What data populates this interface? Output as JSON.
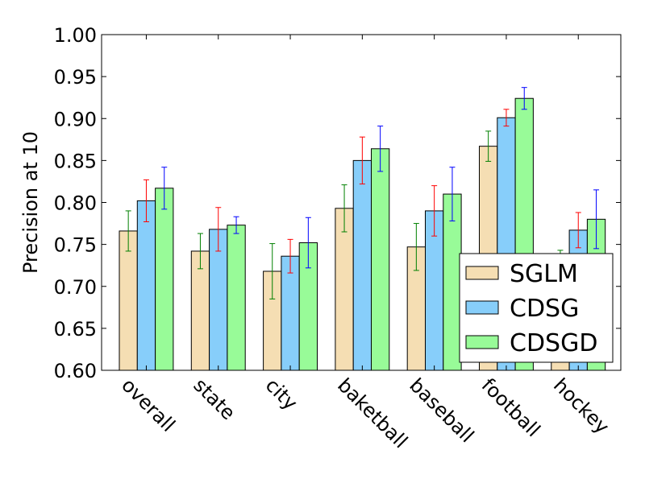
{
  "chart_data": {
    "type": "bar",
    "title": "",
    "xlabel": "",
    "ylabel": "Precision at 10",
    "ylim": [
      0.6,
      1.0
    ],
    "yticks": [
      "0.60",
      "0.65",
      "0.70",
      "0.75",
      "0.80",
      "0.85",
      "0.90",
      "0.95",
      "1.00"
    ],
    "categories": [
      "overall",
      "state",
      "city",
      "baketball",
      "baseball",
      "football",
      "hockey"
    ],
    "legend_position": "bottom-right",
    "grid": false,
    "series": [
      {
        "name": "SGLM",
        "color": "#f5deb3",
        "error_color": "#008000",
        "values": [
          0.766,
          0.742,
          0.718,
          0.793,
          0.747,
          0.867,
          0.722
        ],
        "errors": [
          0.024,
          0.021,
          0.033,
          0.028,
          0.028,
          0.018,
          0.021
        ]
      },
      {
        "name": "CDSG",
        "color": "#87cefa",
        "error_color": "#ff0000",
        "values": [
          0.802,
          0.768,
          0.736,
          0.85,
          0.79,
          0.901,
          0.767
        ],
        "errors": [
          0.025,
          0.026,
          0.02,
          0.028,
          0.03,
          0.01,
          0.021
        ]
      },
      {
        "name": "CDSGD",
        "color": "#98fb98",
        "error_color": "#0000ff",
        "values": [
          0.817,
          0.773,
          0.752,
          0.864,
          0.81,
          0.924,
          0.78
        ],
        "errors": [
          0.025,
          0.01,
          0.03,
          0.027,
          0.032,
          0.013,
          0.035
        ]
      }
    ]
  }
}
